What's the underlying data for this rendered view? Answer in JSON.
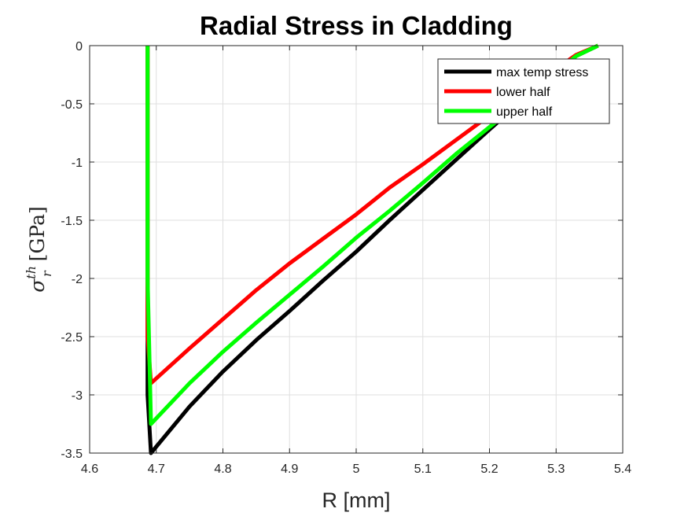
{
  "chart_data": {
    "type": "line",
    "title": "Radial Stress in Cladding",
    "xlabel": "R [mm]",
    "ylabel": {
      "symbol": "σ",
      "superscript": "th",
      "subscript": "r",
      "unit": "[GPa]"
    },
    "xlim": [
      4.6,
      5.4
    ],
    "ylim": [
      -3.5,
      0
    ],
    "xticks": [
      "4.6",
      "4.7",
      "4.8",
      "4.9",
      "5",
      "5.1",
      "5.2",
      "5.3",
      "5.4"
    ],
    "yticks": [
      "0",
      "-0.5",
      "-1",
      "-1.5",
      "-2",
      "-2.5",
      "-3",
      "-3.5"
    ],
    "grid": true,
    "legend_position": "top-right",
    "series": [
      {
        "name": "max temp stress",
        "color": "#000000",
        "x": [
          4.687,
          4.687,
          4.692,
          4.75,
          4.8,
          4.85,
          4.9,
          4.95,
          5.0,
          5.05,
          5.1,
          5.15,
          5.2,
          5.25,
          5.3,
          5.33,
          5.363
        ],
        "y": [
          0,
          -3.0,
          -3.5,
          -3.1,
          -2.8,
          -2.53,
          -2.28,
          -2.02,
          -1.77,
          -1.5,
          -1.24,
          -0.98,
          -0.72,
          -0.47,
          -0.23,
          -0.09,
          0
        ]
      },
      {
        "name": "lower half",
        "color": "#ff0000",
        "x": [
          4.687,
          4.687,
          4.692,
          4.75,
          4.8,
          4.85,
          4.9,
          4.95,
          5.0,
          5.05,
          5.1,
          5.15,
          5.2,
          5.25,
          5.3,
          5.33,
          5.363
        ],
        "y": [
          0,
          -2.5,
          -2.9,
          -2.6,
          -2.35,
          -2.1,
          -1.87,
          -1.66,
          -1.45,
          -1.22,
          -1.02,
          -0.81,
          -0.6,
          -0.4,
          -0.2,
          -0.08,
          0
        ]
      },
      {
        "name": "upper half",
        "color": "#00ff00",
        "x": [
          4.687,
          4.687,
          4.692,
          4.75,
          4.8,
          4.85,
          4.9,
          4.95,
          5.0,
          5.05,
          5.1,
          5.15,
          5.2,
          5.25,
          5.3,
          5.33,
          5.363
        ],
        "y": [
          0,
          -2.0,
          -3.25,
          -2.9,
          -2.63,
          -2.38,
          -2.14,
          -1.9,
          -1.65,
          -1.42,
          -1.18,
          -0.93,
          -0.7,
          -0.47,
          -0.23,
          -0.09,
          0
        ]
      }
    ]
  }
}
